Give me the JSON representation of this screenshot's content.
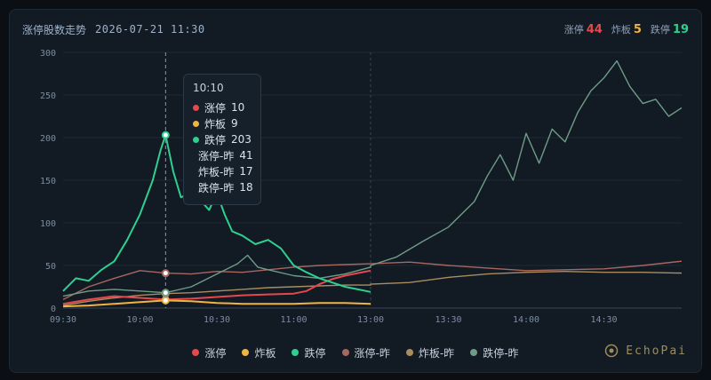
{
  "header": {
    "title": "涨停股数走势",
    "datetime": "2026-07-21 11:30",
    "stats": [
      {
        "label": "涨停",
        "value": "44",
        "color": "#e5484d"
      },
      {
        "label": "炸板",
        "value": "5",
        "color": "#f0b440"
      },
      {
        "label": "跌停",
        "value": "19",
        "color": "#2fcf8f"
      }
    ]
  },
  "logo": {
    "text": "EchoPai"
  },
  "tooltip": {
    "time": "10:10",
    "rows": [
      {
        "label": "涨停",
        "value": "10",
        "color": "#e5484d"
      },
      {
        "label": "炸板",
        "value": "9",
        "color": "#f0b440"
      },
      {
        "label": "跌停",
        "value": "203",
        "color": "#2fcf8f"
      },
      {
        "label": "涨停-昨",
        "value": "41",
        "color": "#a8675f"
      },
      {
        "label": "炸板-昨",
        "value": "17",
        "color": "#a98d5f"
      },
      {
        "label": "跌停-昨",
        "value": "18",
        "color": "#6f9c86"
      }
    ]
  },
  "chart_data": {
    "type": "line",
    "ylim": [
      0,
      300
    ],
    "y_ticks": [
      0,
      50,
      100,
      150,
      200,
      250,
      300
    ],
    "x_ticks": [
      "09:30",
      "10:00",
      "10:30",
      "11:00",
      "13:00",
      "13:30",
      "14:00",
      "14:30"
    ],
    "current_time": "11:30",
    "highlight_time": "10:10",
    "series": [
      {
        "name": "涨停",
        "color": "#e5484d",
        "points": [
          [
            "09:30",
            5
          ],
          [
            "09:40",
            10
          ],
          [
            "09:50",
            14
          ],
          [
            "10:00",
            12
          ],
          [
            "10:10",
            10
          ],
          [
            "10:20",
            11
          ],
          [
            "10:30",
            13
          ],
          [
            "10:40",
            15
          ],
          [
            "10:50",
            16
          ],
          [
            "11:00",
            17
          ],
          [
            "11:05",
            20
          ],
          [
            "11:10",
            28
          ],
          [
            "11:15",
            34
          ],
          [
            "11:20",
            38
          ],
          [
            "11:25",
            41
          ],
          [
            "11:30",
            44
          ]
        ]
      },
      {
        "name": "炸板",
        "color": "#f0b440",
        "points": [
          [
            "09:30",
            2
          ],
          [
            "09:40",
            3
          ],
          [
            "09:50",
            5
          ],
          [
            "10:00",
            7
          ],
          [
            "10:10",
            9
          ],
          [
            "10:20",
            8
          ],
          [
            "10:30",
            6
          ],
          [
            "10:40",
            5
          ],
          [
            "10:50",
            5
          ],
          [
            "11:00",
            5
          ],
          [
            "11:10",
            6
          ],
          [
            "11:20",
            6
          ],
          [
            "11:30",
            5
          ]
        ]
      },
      {
        "name": "跌停",
        "color": "#2fcf8f",
        "points": [
          [
            "09:30",
            20
          ],
          [
            "09:35",
            35
          ],
          [
            "09:40",
            32
          ],
          [
            "09:45",
            45
          ],
          [
            "09:50",
            55
          ],
          [
            "09:55",
            80
          ],
          [
            "10:00",
            110
          ],
          [
            "10:05",
            150
          ],
          [
            "10:08",
            185
          ],
          [
            "10:10",
            203
          ],
          [
            "10:13",
            160
          ],
          [
            "10:16",
            130
          ],
          [
            "10:20",
            135
          ],
          [
            "10:24",
            125
          ],
          [
            "10:27",
            115
          ],
          [
            "10:30",
            135
          ],
          [
            "10:33",
            110
          ],
          [
            "10:36",
            90
          ],
          [
            "10:40",
            85
          ],
          [
            "10:45",
            75
          ],
          [
            "10:50",
            80
          ],
          [
            "10:55",
            70
          ],
          [
            "11:00",
            50
          ],
          [
            "11:05",
            42
          ],
          [
            "11:10",
            35
          ],
          [
            "11:15",
            30
          ],
          [
            "11:20",
            25
          ],
          [
            "11:25",
            22
          ],
          [
            "11:30",
            19
          ]
        ]
      },
      {
        "name": "涨停-昨",
        "color": "#a8675f",
        "points": [
          [
            "09:30",
            10
          ],
          [
            "09:40",
            25
          ],
          [
            "09:50",
            35
          ],
          [
            "10:00",
            44
          ],
          [
            "10:10",
            41
          ],
          [
            "10:20",
            40
          ],
          [
            "10:30",
            43
          ],
          [
            "10:40",
            42
          ],
          [
            "10:50",
            45
          ],
          [
            "11:00",
            48
          ],
          [
            "11:10",
            50
          ],
          [
            "11:20",
            51
          ],
          [
            "11:30",
            52
          ],
          [
            "13:00",
            52
          ],
          [
            "13:15",
            54
          ],
          [
            "13:30",
            50
          ],
          [
            "13:45",
            47
          ],
          [
            "14:00",
            44
          ],
          [
            "14:15",
            45
          ],
          [
            "14:30",
            46
          ],
          [
            "14:45",
            50
          ],
          [
            "15:00",
            55
          ]
        ]
      },
      {
        "name": "炸板-昨",
        "color": "#a98d5f",
        "points": [
          [
            "09:30",
            3
          ],
          [
            "09:40",
            8
          ],
          [
            "09:50",
            12
          ],
          [
            "10:00",
            15
          ],
          [
            "10:10",
            17
          ],
          [
            "10:20",
            18
          ],
          [
            "10:30",
            20
          ],
          [
            "10:40",
            22
          ],
          [
            "10:50",
            24
          ],
          [
            "11:00",
            25
          ],
          [
            "11:10",
            26
          ],
          [
            "11:20",
            27
          ],
          [
            "11:30",
            27
          ],
          [
            "13:00",
            28
          ],
          [
            "13:15",
            30
          ],
          [
            "13:30",
            36
          ],
          [
            "13:45",
            40
          ],
          [
            "14:00",
            42
          ],
          [
            "14:15",
            43
          ],
          [
            "14:30",
            42
          ],
          [
            "14:45",
            42
          ],
          [
            "15:00",
            41
          ]
        ]
      },
      {
        "name": "跌停-昨",
        "color": "#6f9c86",
        "points": [
          [
            "09:30",
            14
          ],
          [
            "09:40",
            20
          ],
          [
            "09:50",
            22
          ],
          [
            "10:00",
            20
          ],
          [
            "10:10",
            18
          ],
          [
            "10:20",
            25
          ],
          [
            "10:30",
            40
          ],
          [
            "10:38",
            52
          ],
          [
            "10:42",
            62
          ],
          [
            "10:46",
            48
          ],
          [
            "10:50",
            45
          ],
          [
            "11:00",
            38
          ],
          [
            "11:10",
            35
          ],
          [
            "11:20",
            40
          ],
          [
            "11:30",
            48
          ],
          [
            "13:00",
            50
          ],
          [
            "13:10",
            60
          ],
          [
            "13:20",
            78
          ],
          [
            "13:30",
            95
          ],
          [
            "13:40",
            125
          ],
          [
            "13:45",
            155
          ],
          [
            "13:50",
            180
          ],
          [
            "13:55",
            150
          ],
          [
            "14:00",
            205
          ],
          [
            "14:05",
            170
          ],
          [
            "14:10",
            210
          ],
          [
            "14:15",
            195
          ],
          [
            "14:20",
            230
          ],
          [
            "14:25",
            255
          ],
          [
            "14:30",
            270
          ],
          [
            "14:35",
            290
          ],
          [
            "14:40",
            260
          ],
          [
            "14:45",
            240
          ],
          [
            "14:50",
            245
          ],
          [
            "14:55",
            225
          ],
          [
            "15:00",
            235
          ]
        ]
      }
    ]
  }
}
